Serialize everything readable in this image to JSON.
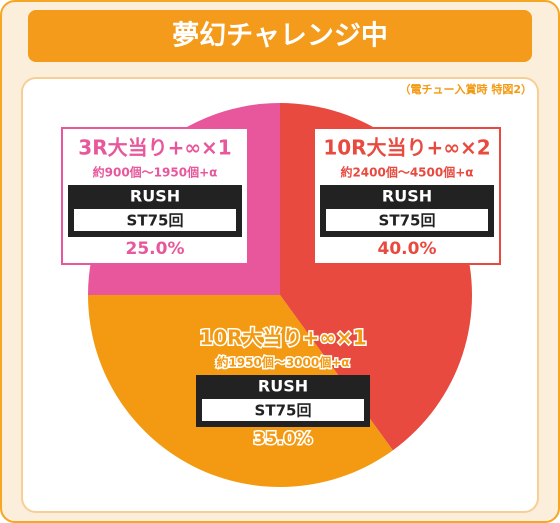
{
  "chart_data": {
    "type": "pie",
    "title": "夢幻チャレンジ中",
    "subtitle": "（電チュー入賞時 特図2）",
    "categories": [
      "10R大当り+∞×2",
      "10R大当り+∞×1",
      "3R大当り+∞×1"
    ],
    "values": [
      40,
      35,
      25
    ],
    "value_labels": [
      "40.0%",
      "35.0%",
      "25.0%"
    ],
    "colors": [
      "#e84a3f",
      "#f39a12",
      "#e8579b"
    ],
    "details": [
      {
        "range": "約2400個～4500個+α",
        "mode": "RUSH",
        "st": "ST75回"
      },
      {
        "range": "約1950個～3000個+α",
        "mode": "RUSH",
        "st": "ST75回"
      },
      {
        "range": "約900個～1950個+α",
        "mode": "RUSH",
        "st": "ST75回"
      }
    ]
  }
}
